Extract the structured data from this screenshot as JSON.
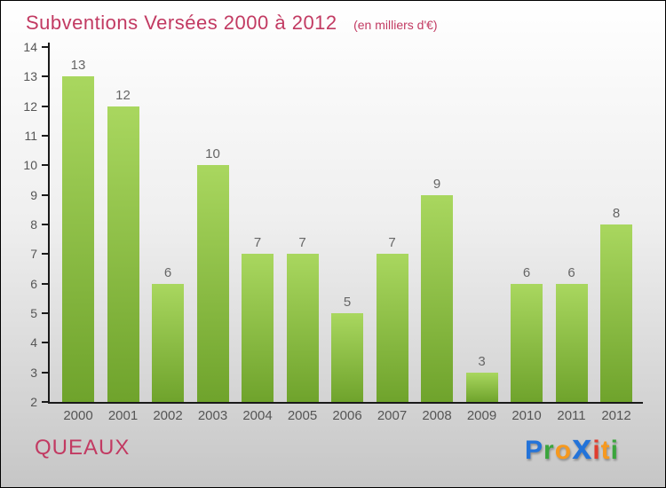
{
  "title": "Subventions Versées 2000 à 2012",
  "subtitle": "(en milliers d'€)",
  "footer": {
    "commune": "QUEAUX"
  },
  "logo": {
    "name": "Proxiti",
    "letters": [
      {
        "ch": "P",
        "color": "#2373d9",
        "big": false
      },
      {
        "ch": "r",
        "color": "#3ba53c",
        "big": false
      },
      {
        "ch": "o",
        "color": "#f6991f",
        "big": false
      },
      {
        "ch": "x",
        "color": "#2373d9",
        "big": true
      },
      {
        "ch": "i",
        "color": "#e03c2e",
        "big": false
      },
      {
        "ch": "t",
        "color": "#f6991f",
        "big": false
      },
      {
        "ch": "i",
        "color": "#3ba53c",
        "big": false
      }
    ]
  },
  "colors": {
    "title_text": "#c23a62",
    "bar_top": "#a9d75f",
    "bar_bottom": "#6fa32c",
    "axis": "#1a1a1a",
    "tick_label": "#555555",
    "value_label": "#666666",
    "bg_top": "#ffffff",
    "bg_bottom": "#c6c6c6"
  },
  "chart_data": {
    "type": "bar",
    "title": "Subventions Versées 2000 à 2012",
    "subtitle": "(en milliers d'€)",
    "categories": [
      "2000",
      "2001",
      "2002",
      "2003",
      "2004",
      "2005",
      "2006",
      "2007",
      "2008",
      "2009",
      "2010",
      "2011",
      "2012"
    ],
    "values": [
      13,
      12,
      6,
      10,
      7,
      7,
      5,
      7,
      9,
      3,
      6,
      6,
      8
    ],
    "xlabel": "",
    "ylabel": "(en milliers d'€)",
    "ylim": [
      2,
      14
    ],
    "ytick_step": 1,
    "grid": false,
    "legend": false,
    "bar_labels_shown": true
  }
}
